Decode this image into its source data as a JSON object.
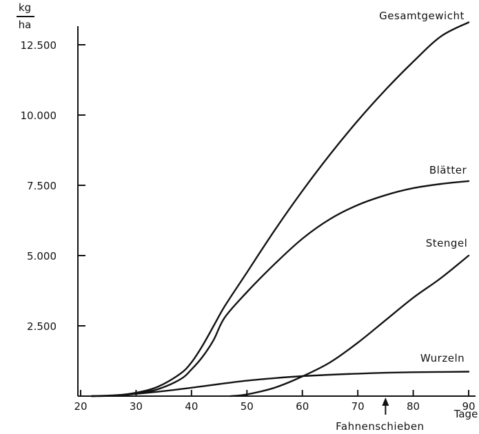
{
  "chart_data": {
    "type": "line",
    "ylabel_top": "kg",
    "ylabel_bottom": "ha",
    "xlabel": "Tage",
    "xlim": [
      20,
      90
    ],
    "ylim": [
      0,
      13000
    ],
    "xticks": [
      20,
      30,
      40,
      50,
      60,
      70,
      80,
      90
    ],
    "yticks": [
      {
        "value": 2500,
        "label": "2.500"
      },
      {
        "value": 5000,
        "label": "5.000"
      },
      {
        "value": 7500,
        "label": "7.500"
      },
      {
        "value": 10000,
        "label": "10.000"
      },
      {
        "value": 12500,
        "label": "12.500"
      }
    ],
    "grid": false,
    "series": [
      {
        "name": "Gesamtgewicht",
        "color": "#111111",
        "points": [
          [
            22,
            0
          ],
          [
            26,
            20
          ],
          [
            30,
            120
          ],
          [
            34,
            340
          ],
          [
            38,
            800
          ],
          [
            40,
            1200
          ],
          [
            42,
            1800
          ],
          [
            44,
            2500
          ],
          [
            46,
            3200
          ],
          [
            50,
            4400
          ],
          [
            55,
            5900
          ],
          [
            60,
            7300
          ],
          [
            65,
            8600
          ],
          [
            70,
            9800
          ],
          [
            75,
            10900
          ],
          [
            80,
            11900
          ],
          [
            85,
            12800
          ],
          [
            90,
            13300
          ]
        ]
      },
      {
        "name": "Blätter",
        "color": "#111111",
        "points": [
          [
            22,
            0
          ],
          [
            26,
            15
          ],
          [
            30,
            90
          ],
          [
            34,
            250
          ],
          [
            38,
            600
          ],
          [
            40,
            950
          ],
          [
            42,
            1400
          ],
          [
            44,
            2000
          ],
          [
            46,
            2800
          ],
          [
            50,
            3700
          ],
          [
            55,
            4700
          ],
          [
            60,
            5600
          ],
          [
            65,
            6300
          ],
          [
            70,
            6800
          ],
          [
            75,
            7150
          ],
          [
            80,
            7400
          ],
          [
            85,
            7550
          ],
          [
            90,
            7650
          ]
        ]
      },
      {
        "name": "Stengel",
        "color": "#111111",
        "points": [
          [
            47,
            0
          ],
          [
            50,
            60
          ],
          [
            55,
            300
          ],
          [
            60,
            700
          ],
          [
            65,
            1200
          ],
          [
            70,
            1900
          ],
          [
            75,
            2700
          ],
          [
            80,
            3500
          ],
          [
            85,
            4200
          ],
          [
            90,
            5000
          ]
        ]
      },
      {
        "name": "Wurzeln",
        "color": "#111111",
        "points": [
          [
            22,
            0
          ],
          [
            26,
            30
          ],
          [
            30,
            80
          ],
          [
            35,
            180
          ],
          [
            40,
            300
          ],
          [
            45,
            430
          ],
          [
            50,
            550
          ],
          [
            55,
            640
          ],
          [
            60,
            710
          ],
          [
            65,
            760
          ],
          [
            70,
            800
          ],
          [
            75,
            830
          ],
          [
            80,
            850
          ],
          [
            85,
            860
          ],
          [
            90,
            870
          ]
        ]
      }
    ],
    "annotations": [
      {
        "text": "Fahnenschieben",
        "x": 75
      }
    ]
  }
}
